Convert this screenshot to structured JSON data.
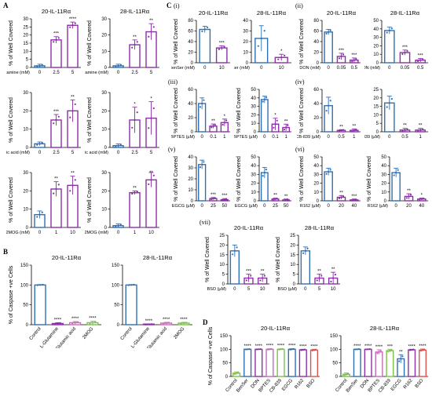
{
  "letters": {
    "A": "A",
    "B": "B",
    "C": "C",
    "D": "D"
  },
  "sub": {
    "i": "(i)",
    "ii": "(ii)",
    "iii": "(iii)",
    "iv": "(iv)",
    "v": "(v)",
    "vi": "(vi)",
    "vii": "(vii)"
  },
  "colors": {
    "purple": "#8B2FA8",
    "blue": "#2F6FB3",
    "green": "#7DC24B",
    "red": "#D9534F",
    "pink": "#C86BB8",
    "axis": "#000000"
  },
  "chart_data": [
    {
      "id": "A1",
      "type": "bar",
      "title": "20-IL-11Rα",
      "xlabel": "L-Glutamine (mM)",
      "ylabel": "% of Well Covered",
      "categories": [
        "0",
        "2.5",
        "5"
      ],
      "values": [
        1,
        17,
        26
      ],
      "errors": [
        1,
        2,
        2
      ],
      "sig": [
        "",
        "***",
        "****"
      ],
      "ylim": [
        0,
        30
      ],
      "yticks": [
        0,
        5,
        10,
        15,
        20,
        25,
        30
      ],
      "colors": [
        "blue",
        "purple",
        "purple"
      ]
    },
    {
      "id": "A2",
      "type": "bar",
      "title": "28-IL-11Rα",
      "xlabel": "L-Glutamine (mM)",
      "ylabel": "% of Well Covered",
      "categories": [
        "0",
        "2.5",
        "5"
      ],
      "values": [
        1,
        14,
        22
      ],
      "errors": [
        1,
        3,
        5
      ],
      "sig": [
        "",
        "**",
        "**"
      ],
      "ylim": [
        0,
        30
      ],
      "yticks": [
        0,
        10,
        20,
        30
      ],
      "colors": [
        "blue",
        "purple",
        "purple"
      ]
    },
    {
      "id": "A3",
      "type": "bar",
      "xlabel": "L-Glutamic acid (mM)",
      "ylabel": "% of Well Covered",
      "categories": [
        "0",
        "2.5",
        "5"
      ],
      "values": [
        2,
        15,
        20
      ],
      "errors": [
        1,
        3,
        6
      ],
      "sig": [
        "",
        "***",
        "**"
      ],
      "ylim": [
        0,
        30
      ],
      "yticks": [
        0,
        10,
        20,
        30
      ],
      "colors": [
        "blue",
        "purple",
        "purple"
      ]
    },
    {
      "id": "A4",
      "type": "bar",
      "xlabel": "L-Glutamic acid (mM)",
      "ylabel": "% of Well Covered",
      "categories": [
        "0",
        "2.5",
        "5"
      ],
      "values": [
        1,
        15,
        16
      ],
      "errors": [
        1,
        7,
        9
      ],
      "sig": [
        "",
        "*",
        "*"
      ],
      "ylim": [
        0,
        30
      ],
      "yticks": [
        0,
        10,
        20,
        30
      ],
      "colors": [
        "blue",
        "purple",
        "purple"
      ]
    },
    {
      "id": "A5",
      "type": "bar",
      "xlabel": "2MOG (mM)",
      "ylabel": "% of Well Covered",
      "categories": [
        "0",
        "1",
        "10"
      ],
      "values": [
        7,
        21,
        23
      ],
      "errors": [
        2,
        4,
        5
      ],
      "sig": [
        "",
        "**",
        "**"
      ],
      "ylim": [
        0,
        30
      ],
      "yticks": [
        0,
        10,
        20,
        30
      ],
      "colors": [
        "blue",
        "purple",
        "purple"
      ]
    },
    {
      "id": "A6",
      "type": "bar",
      "xlabel": "2MOG (mM)",
      "ylabel": "% of Well Covered",
      "categories": [
        "0",
        "1",
        "10"
      ],
      "values": [
        1,
        19,
        26
      ],
      "errors": [
        1,
        1,
        4
      ],
      "sig": [
        "",
        "**",
        "**"
      ],
      "ylim": [
        0,
        30
      ],
      "yticks": [
        0,
        10,
        20,
        30
      ],
      "colors": [
        "blue",
        "purple",
        "purple"
      ]
    },
    {
      "id": "Ci1",
      "type": "bar",
      "title": "20-IL-11Rα",
      "xlabel": "BenSer (mM)",
      "ylabel": "% of Well Covered",
      "categories": [
        "0",
        "10"
      ],
      "values": [
        63,
        28
      ],
      "errors": [
        6,
        4
      ],
      "sig": [
        "",
        "***"
      ],
      "ylim": [
        0,
        80
      ],
      "yticks": [
        0,
        20,
        40,
        60,
        80
      ],
      "colors": [
        "blue",
        "purple"
      ]
    },
    {
      "id": "Ci2",
      "type": "bar",
      "title": "28-IL-11Rα",
      "xlabel": "BenSer (mM)",
      "ylabel": "",
      "categories": [
        "0",
        "10"
      ],
      "values": [
        23,
        5
      ],
      "errors": [
        12,
        3
      ],
      "sig": [
        "",
        "*"
      ],
      "ylim": [
        0,
        40
      ],
      "yticks": [
        0,
        10,
        20,
        30,
        40
      ],
      "colors": [
        "blue",
        "purple"
      ]
    },
    {
      "id": "Cii1",
      "type": "bar",
      "title": "20-IL-11Rα",
      "xlabel": "DON (mM)",
      "ylabel": "% of Well Covered",
      "categories": [
        "0",
        "0.05",
        "0.5"
      ],
      "values": [
        58,
        12,
        5
      ],
      "errors": [
        5,
        6,
        4
      ],
      "sig": [
        "",
        "***",
        "***"
      ],
      "ylim": [
        0,
        80
      ],
      "yticks": [
        0,
        20,
        40,
        60,
        80
      ],
      "colors": [
        "blue",
        "purple",
        "purple"
      ]
    },
    {
      "id": "Cii2",
      "type": "bar",
      "title": "28-IL-11Rα",
      "xlabel": "DON (mM)",
      "ylabel": "",
      "categories": [
        "0",
        "0.05",
        "0.5"
      ],
      "values": [
        38,
        12,
        3
      ],
      "errors": [
        4,
        3,
        2
      ],
      "sig": [
        "",
        "***",
        "***"
      ],
      "ylim": [
        0,
        50
      ],
      "yticks": [
        0,
        10,
        20,
        30,
        40,
        50
      ],
      "colors": [
        "blue",
        "purple",
        "purple"
      ]
    },
    {
      "id": "Ciii1",
      "type": "bar",
      "xlabel": "BPTES (µM)",
      "ylabel": "% of Well Covered",
      "categories": [
        "0",
        "0.1",
        "1"
      ],
      "values": [
        40,
        8,
        13
      ],
      "errors": [
        8,
        3,
        5
      ],
      "sig": [
        "",
        "**",
        "*"
      ],
      "ylim": [
        0,
        60
      ],
      "yticks": [
        0,
        20,
        40,
        60
      ],
      "colors": [
        "blue",
        "purple",
        "purple"
      ]
    },
    {
      "id": "Ciii2",
      "type": "bar",
      "xlabel": "BPTES (µM)",
      "ylabel": "% of Well Covered",
      "categories": [
        "0",
        "0.1",
        "1"
      ],
      "values": [
        38,
        9,
        5
      ],
      "errors": [
        4,
        7,
        4
      ],
      "sig": [
        "",
        "*",
        "**"
      ],
      "ylim": [
        0,
        50
      ],
      "yticks": [
        0,
        10,
        20,
        30,
        40,
        50
      ],
      "colors": [
        "blue",
        "purple",
        "purple"
      ]
    },
    {
      "id": "Civ1",
      "type": "bar",
      "xlabel": "CB-839 (µM)",
      "ylabel": "% of Well Covered",
      "categories": [
        "0",
        "0.5",
        "1"
      ],
      "values": [
        37,
        2,
        2
      ],
      "errors": [
        12,
        1,
        2
      ],
      "sig": [
        "",
        "**",
        "**"
      ],
      "ylim": [
        0,
        60
      ],
      "yticks": [
        0,
        20,
        40,
        60
      ],
      "colors": [
        "blue",
        "purple",
        "purple"
      ]
    },
    {
      "id": "Civ2",
      "type": "bar",
      "xlabel": "CB-839 (µM)",
      "ylabel": "",
      "categories": [
        "0",
        "0.5",
        "1"
      ],
      "values": [
        17,
        1,
        1
      ],
      "errors": [
        4,
        1,
        1
      ],
      "sig": [
        "",
        "**",
        "**"
      ],
      "ylim": [
        0,
        25
      ],
      "yticks": [
        0,
        5,
        10,
        15,
        20,
        25
      ],
      "colors": [
        "blue",
        "purple",
        "purple"
      ]
    },
    {
      "id": "Cv1",
      "type": "bar",
      "xlabel": "EGCG (µM)",
      "ylabel": "% of Well Covered",
      "categories": [
        "0",
        "25",
        "50"
      ],
      "values": [
        33,
        2,
        1
      ],
      "errors": [
        4,
        1,
        1
      ],
      "sig": [
        "",
        "***",
        "***"
      ],
      "ylim": [
        0,
        40
      ],
      "yticks": [
        0,
        10,
        20,
        30,
        40
      ],
      "colors": [
        "blue",
        "purple",
        "purple"
      ]
    },
    {
      "id": "Cv2",
      "type": "bar",
      "xlabel": "EGCG (µM)",
      "ylabel": "% of Well Covered",
      "categories": [
        "0",
        "25",
        "50"
      ],
      "values": [
        32,
        2,
        1
      ],
      "errors": [
        6,
        1,
        1
      ],
      "sig": [
        "",
        "**",
        "**"
      ],
      "ylim": [
        0,
        50
      ],
      "yticks": [
        0,
        10,
        20,
        30,
        40,
        50
      ],
      "colors": [
        "blue",
        "purple",
        "purple"
      ]
    },
    {
      "id": "Cvi1",
      "type": "bar",
      "xlabel": "R162 (µM)",
      "ylabel": "% of Well Covered",
      "categories": [
        "0",
        "20",
        "40"
      ],
      "values": [
        33,
        4,
        1
      ],
      "errors": [
        4,
        2,
        1
      ],
      "sig": [
        "",
        "**",
        "***"
      ],
      "ylim": [
        0,
        50
      ],
      "yticks": [
        0,
        10,
        20,
        30,
        40,
        50
      ],
      "colors": [
        "blue",
        "purple",
        "purple"
      ]
    },
    {
      "id": "Cvi2",
      "type": "bar",
      "xlabel": "R162 (µM)",
      "ylabel": "% of Well Covered",
      "categories": [
        "0",
        "20",
        "40"
      ],
      "values": [
        32,
        5,
        2
      ],
      "errors": [
        5,
        3,
        1
      ],
      "sig": [
        "",
        "**",
        "*"
      ],
      "ylim": [
        0,
        50
      ],
      "yticks": [
        0,
        10,
        20,
        30,
        40,
        50
      ],
      "colors": [
        "blue",
        "purple",
        "purple"
      ]
    },
    {
      "id": "Cvii1",
      "type": "bar",
      "title": "20-IL-11Rα",
      "xlabel": "BSO (µM)",
      "ylabel": "% of Well Covered",
      "categories": [
        "0",
        "5",
        "10"
      ],
      "values": [
        17,
        3,
        3
      ],
      "errors": [
        3,
        2,
        2
      ],
      "sig": [
        "",
        "***",
        "**"
      ],
      "ylim": [
        0,
        25
      ],
      "yticks": [
        0,
        5,
        10,
        15,
        20,
        25
      ],
      "colors": [
        "blue",
        "purple",
        "purple"
      ]
    },
    {
      "id": "Cvii2",
      "type": "bar",
      "title": "28-IL-11Rα",
      "xlabel": "BSO (µM)",
      "ylabel": "% of Well Covered",
      "categories": [
        "0",
        "5",
        "10"
      ],
      "values": [
        17,
        3,
        3
      ],
      "errors": [
        2,
        2,
        3
      ],
      "sig": [
        "",
        "**",
        "**"
      ],
      "ylim": [
        0,
        25
      ],
      "yticks": [
        0,
        5,
        10,
        15,
        20,
        25
      ],
      "colors": [
        "blue",
        "purple",
        "purple"
      ]
    },
    {
      "id": "B1",
      "type": "bar",
      "title": "20-IL-11Rα",
      "xlabel": "",
      "ylabel": "% of Caspase +ve Cells",
      "categories": [
        "Control",
        "L-Glutamine",
        "L-Glutamic acid",
        "2MOG"
      ],
      "values": [
        100,
        3,
        5,
        5
      ],
      "errors": [
        1,
        2,
        3,
        4
      ],
      "sig": [
        "",
        "****",
        "****",
        "****"
      ],
      "ylim": [
        0,
        150
      ],
      "yticks": [
        0,
        50,
        100,
        150
      ],
      "colors": [
        "blue",
        "purple",
        "pink",
        "green"
      ]
    },
    {
      "id": "B2",
      "type": "bar",
      "title": "28-IL-11Rα",
      "xlabel": "",
      "ylabel": "",
      "categories": [
        "Control",
        "L-Glutamine",
        "L-Glutamic acid",
        "2MOG"
      ],
      "values": [
        100,
        1,
        4,
        4
      ],
      "errors": [
        1,
        1,
        2,
        2
      ],
      "sig": [
        "",
        "****",
        "****",
        "****"
      ],
      "ylim": [
        0,
        150
      ],
      "yticks": [
        0,
        50,
        100,
        150
      ],
      "colors": [
        "blue",
        "purple",
        "pink",
        "green"
      ]
    },
    {
      "id": "D1",
      "type": "bar",
      "title": "20-IL-11Rα",
      "xlabel": "",
      "ylabel": "% of Caspase +ve Cells",
      "categories": [
        "Control",
        "BenSer",
        "DON",
        "BPTES",
        "CB-839",
        "EGCG",
        "R162",
        "BSO"
      ],
      "values": [
        12,
        100,
        100,
        100,
        100,
        100,
        98,
        97
      ],
      "errors": [
        5,
        1,
        1,
        2,
        2,
        2,
        2,
        3
      ],
      "sig": [
        "",
        "****",
        "****",
        "****",
        "****",
        "****",
        "****",
        "****"
      ],
      "ylim": [
        0,
        150
      ],
      "yticks": [
        0,
        50,
        100,
        150
      ],
      "colors": [
        "green",
        "blue",
        "purple",
        "pink",
        "green",
        "blue",
        "purple",
        "red"
      ]
    },
    {
      "id": "D2",
      "type": "bar",
      "title": "28-IL-11Rα",
      "xlabel": "",
      "ylabel": "",
      "categories": [
        "Control",
        "BenSer",
        "DON",
        "BPTES",
        "CB-839",
        "EGCG",
        "R162",
        "BSO"
      ],
      "values": [
        8,
        100,
        100,
        90,
        95,
        65,
        98,
        97
      ],
      "errors": [
        5,
        1,
        1,
        8,
        5,
        15,
        2,
        4
      ],
      "sig": [
        "",
        "****",
        "****",
        "****",
        "***",
        "**",
        "****",
        "****"
      ],
      "ylim": [
        0,
        150
      ],
      "yticks": [
        0,
        50,
        100,
        150
      ],
      "colors": [
        "green",
        "blue",
        "purple",
        "pink",
        "green",
        "blue",
        "purple",
        "red"
      ]
    }
  ]
}
